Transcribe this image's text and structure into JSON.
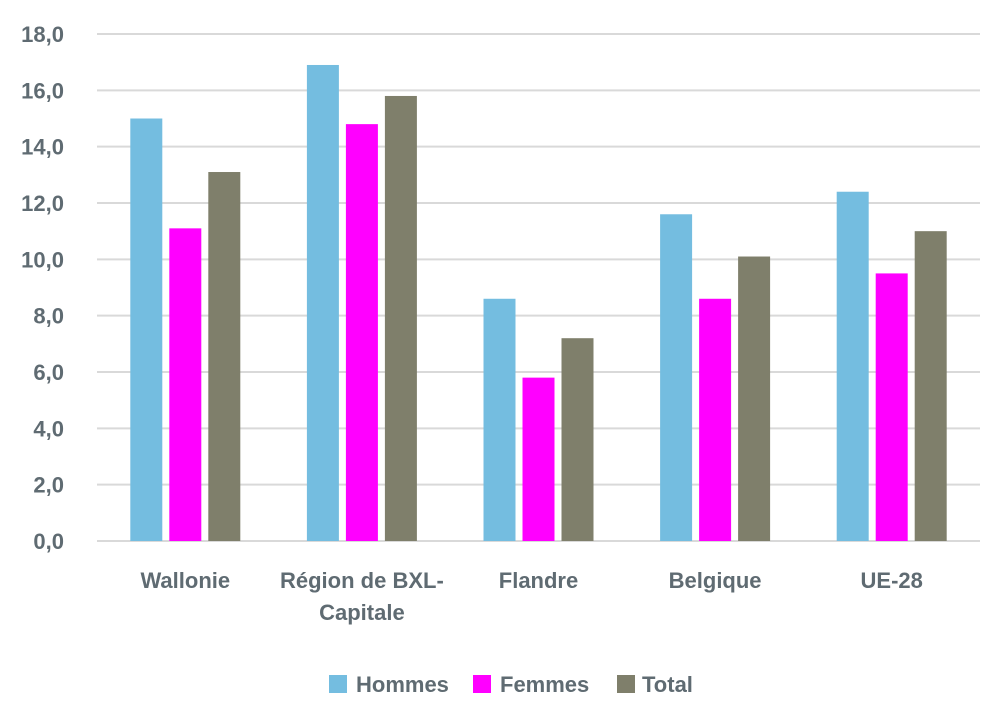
{
  "chart_data": {
    "type": "bar",
    "categories": [
      [
        "Wallonie"
      ],
      [
        "Région de BXL-",
        "Capitale"
      ],
      [
        "Flandre"
      ],
      [
        "Belgique"
      ],
      [
        "UE-28"
      ]
    ],
    "series": [
      {
        "name": "Hommes",
        "color": "#74bde0",
        "values": [
          15.0,
          16.9,
          8.6,
          11.6,
          12.4
        ]
      },
      {
        "name": "Femmes",
        "color": "#ff00ff",
        "values": [
          11.1,
          14.8,
          5.8,
          8.6,
          9.5
        ]
      },
      {
        "name": "Total",
        "color": "#7f7f6b",
        "values": [
          13.1,
          15.8,
          7.2,
          10.1,
          11.0
        ]
      }
    ],
    "ylim": [
      0,
      18
    ],
    "yticks": [
      "0,0",
      "2,0",
      "4,0",
      "6,0",
      "8,0",
      "10,0",
      "12,0",
      "14,0",
      "16,0",
      "18,0"
    ],
    "grid": true,
    "legend_position": "bottom",
    "gridline_color": "#d9d9d9"
  }
}
